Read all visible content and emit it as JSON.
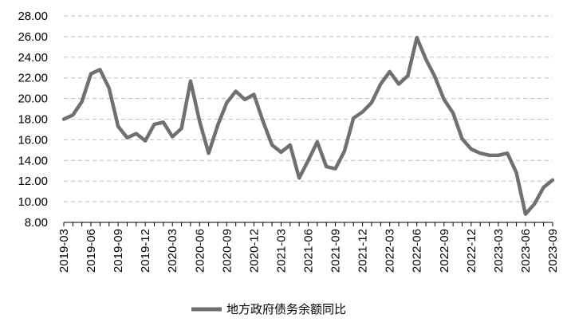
{
  "chart_data": {
    "type": "line",
    "title": "",
    "xlabel": "",
    "ylabel": "",
    "ylim": [
      8,
      28
    ],
    "y_ticks": [
      "8.00",
      "10.00",
      "12.00",
      "14.00",
      "16.00",
      "18.00",
      "20.00",
      "22.00",
      "24.00",
      "26.00",
      "28.00"
    ],
    "grid": "horizontal-dashed",
    "legend_position": "bottom-center",
    "x_tick_labels": [
      "2019-03",
      "2019-06",
      "2019-09",
      "2019-12",
      "2020-03",
      "2020-06",
      "2020-09",
      "2020-12",
      "2021-03",
      "2021-06",
      "2021-09",
      "2021-12",
      "2022-03",
      "2022-06",
      "2022-09",
      "2022-12",
      "2023-03",
      "2023-06",
      "2023-09"
    ],
    "x": [
      "2019-03",
      "2019-04",
      "2019-05",
      "2019-06",
      "2019-07",
      "2019-08",
      "2019-09",
      "2019-10",
      "2019-11",
      "2019-12",
      "2020-01",
      "2020-02",
      "2020-03",
      "2020-04",
      "2020-05",
      "2020-06",
      "2020-07",
      "2020-08",
      "2020-09",
      "2020-10",
      "2020-11",
      "2020-12",
      "2021-01",
      "2021-02",
      "2021-03",
      "2021-04",
      "2021-05",
      "2021-06",
      "2021-07",
      "2021-08",
      "2021-09",
      "2021-10",
      "2021-11",
      "2021-12",
      "2022-01",
      "2022-02",
      "2022-03",
      "2022-04",
      "2022-05",
      "2022-06",
      "2022-07",
      "2022-08",
      "2022-09",
      "2022-10",
      "2022-11",
      "2022-12",
      "2023-01",
      "2023-02",
      "2023-03",
      "2023-04",
      "2023-05",
      "2023-06",
      "2023-07",
      "2023-08",
      "2023-09"
    ],
    "series": [
      {
        "name": "地方政府债务余额同比",
        "color": "#707070",
        "values": [
          18.0,
          18.4,
          19.7,
          22.4,
          22.8,
          21.0,
          17.3,
          16.2,
          16.6,
          15.9,
          17.5,
          17.7,
          16.3,
          17.1,
          21.7,
          17.8,
          14.7,
          17.4,
          19.6,
          20.7,
          19.9,
          20.4,
          17.8,
          15.5,
          14.8,
          15.5,
          12.3,
          14.0,
          15.8,
          13.4,
          13.2,
          14.9,
          18.1,
          18.7,
          19.6,
          21.4,
          22.6,
          21.4,
          22.2,
          25.9,
          23.8,
          22.1,
          19.9,
          18.6,
          16.1,
          15.1,
          14.7,
          14.5,
          14.5,
          14.7,
          12.8,
          8.8,
          9.8,
          11.4,
          12.1
        ]
      }
    ]
  }
}
